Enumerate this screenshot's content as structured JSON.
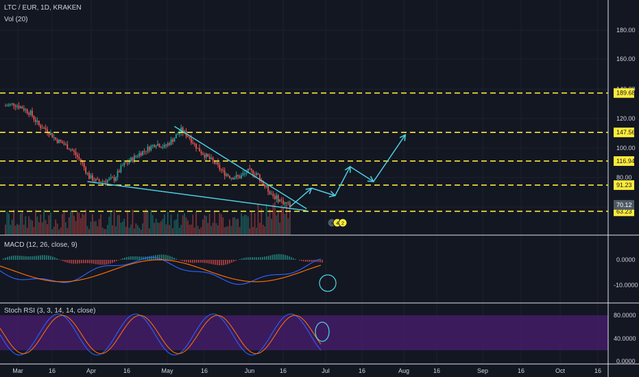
{
  "header": {
    "symbol_line": "LTC / EUR, 1D, KRAKEN",
    "vol_label": "Vol (20)",
    "macd_label": "MACD (12, 26, close, 9)",
    "stoch_label": "Stoch RSI (3, 3, 14, 14, close)"
  },
  "colors": {
    "background": "#131722",
    "up": "#26a69a",
    "down": "#ef5350",
    "level_line": "#ffeb3b",
    "trend_line": "#4dd0e1",
    "macd_line": "#2962ff",
    "signal_line": "#ff6d00",
    "stoch_band": "#4a1d70"
  },
  "chart_data": {
    "type": "candlestick",
    "price_axis": {
      "ticks": [
        "180.00",
        "160.00",
        "140.00",
        "120.00",
        "100.00",
        "80.00",
        "60.00"
      ],
      "range": [
        55,
        192
      ]
    },
    "level_lines": [
      {
        "value": 189.68,
        "label": "189.68"
      },
      {
        "value": 147.56,
        "label": "147.56"
      },
      {
        "value": 116.94,
        "label": "116.94"
      },
      {
        "value": 91.23,
        "label": "91.23"
      },
      {
        "value": 63.23,
        "label": "63.23"
      }
    ],
    "last_price": {
      "value": 70.12,
      "label": "70.12"
    },
    "time_axis": [
      "Mar",
      "16",
      "Apr",
      "16",
      "May",
      "16",
      "Jun",
      "16",
      "Jul",
      "16",
      "Aug",
      "16",
      "Sep",
      "16",
      "Oct",
      "16"
    ],
    "close_path": [
      [
        0,
        176
      ],
      [
        5,
        178
      ],
      [
        10,
        174
      ],
      [
        15,
        168
      ],
      [
        20,
        155
      ],
      [
        25,
        150
      ],
      [
        30,
        140
      ],
      [
        35,
        135
      ],
      [
        40,
        128
      ],
      [
        45,
        117
      ],
      [
        50,
        100
      ],
      [
        55,
        95
      ],
      [
        60,
        96
      ],
      [
        65,
        98
      ],
      [
        70,
        112
      ],
      [
        75,
        118
      ],
      [
        80,
        125
      ],
      [
        85,
        130
      ],
      [
        90,
        136
      ],
      [
        95,
        132
      ],
      [
        100,
        140
      ],
      [
        105,
        150
      ],
      [
        110,
        142
      ],
      [
        115,
        130
      ],
      [
        120,
        122
      ],
      [
        125,
        115
      ],
      [
        130,
        105
      ],
      [
        135,
        100
      ],
      [
        140,
        100
      ],
      [
        145,
        106
      ],
      [
        150,
        104
      ],
      [
        155,
        90
      ],
      [
        160,
        80
      ],
      [
        165,
        74
      ],
      [
        170,
        70
      ]
    ],
    "trend_lines": [
      {
        "from": [
          101,
          154
        ],
        "to": [
          180,
          66
        ]
      },
      {
        "from": [
          49,
          95
        ],
        "to": [
          180,
          64
        ]
      }
    ],
    "projection_path": [
      [
        170,
        68
      ],
      [
        183,
        88
      ],
      [
        197,
        80
      ],
      [
        206,
        111
      ],
      [
        220,
        95
      ],
      [
        239,
        145
      ]
    ],
    "macd": {
      "ticks": [
        "0.0000",
        "-10.0000"
      ]
    },
    "stoch_rsi": {
      "ticks": [
        "80.0000",
        "40.0000",
        "0.0000"
      ],
      "band": [
        20,
        80
      ]
    },
    "annotations": {
      "event_badges": [
        "+",
        "4",
        "2"
      ]
    }
  }
}
